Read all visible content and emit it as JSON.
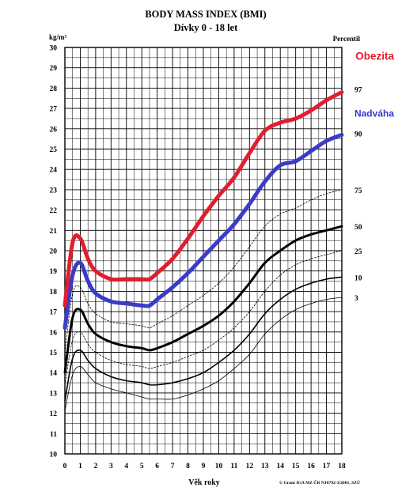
{
  "chart_data": {
    "type": "line",
    "title": "BODY MASS INDEX (BMI)",
    "subtitle": "Dívky 0 - 18 let",
    "ylabel": "kg/m²",
    "xlabel": "Věk roky",
    "percentile_header": "Percentil",
    "credit": "© Grant IGA MZ ČR NJ6792-3/2001, SZÚ",
    "xlim": [
      0,
      18
    ],
    "ylim": [
      10,
      30
    ],
    "x_ticks": [
      "0",
      "1",
      "2",
      "3",
      "4",
      "5",
      "6",
      "7",
      "8",
      "9",
      "10",
      "11",
      "12",
      "13",
      "14",
      "15",
      "16",
      "17",
      "18"
    ],
    "y_ticks": [
      "10",
      "11",
      "12",
      "13",
      "14",
      "15",
      "16",
      "17",
      "18",
      "19",
      "20",
      "21",
      "22",
      "23",
      "24",
      "25",
      "26",
      "27",
      "28",
      "29",
      "30"
    ],
    "grid": "on",
    "series": [
      {
        "name": "3",
        "x": [
          0,
          0.5,
          1,
          1.5,
          2,
          3,
          4,
          5,
          5.5,
          6,
          7,
          8,
          9,
          10,
          11,
          12,
          13,
          14,
          15,
          16,
          17,
          18
        ],
        "values": [
          12.1,
          13.9,
          14.3,
          13.9,
          13.5,
          13.2,
          13.0,
          12.8,
          12.7,
          12.7,
          12.7,
          12.9,
          13.2,
          13.6,
          14.2,
          14.9,
          15.9,
          16.6,
          17.1,
          17.4,
          17.6,
          17.7
        ]
      },
      {
        "name": "10",
        "x": [
          0,
          0.5,
          1,
          1.5,
          2,
          3,
          4,
          5,
          5.5,
          6,
          7,
          8,
          9,
          10,
          11,
          12,
          13,
          14,
          15,
          16,
          17,
          18
        ],
        "values": [
          12.6,
          14.7,
          15.1,
          14.6,
          14.2,
          13.8,
          13.6,
          13.5,
          13.4,
          13.4,
          13.5,
          13.7,
          14.0,
          14.5,
          15.1,
          15.9,
          16.9,
          17.6,
          18.1,
          18.4,
          18.6,
          18.7
        ]
      },
      {
        "name": "25",
        "x": [
          0,
          0.5,
          1,
          1.5,
          2,
          3,
          4,
          5,
          5.5,
          6,
          7,
          8,
          9,
          10,
          11,
          12,
          13,
          14,
          15,
          16,
          17,
          18
        ],
        "values": [
          13.4,
          15.6,
          16.0,
          15.4,
          15.0,
          14.6,
          14.4,
          14.3,
          14.2,
          14.3,
          14.5,
          14.8,
          15.1,
          15.6,
          16.2,
          17.0,
          18.0,
          18.8,
          19.3,
          19.6,
          19.8,
          20.0
        ]
      },
      {
        "name": "50",
        "x": [
          0,
          0.5,
          1,
          1.5,
          2,
          3,
          4,
          5,
          5.5,
          6,
          7,
          8,
          9,
          10,
          11,
          12,
          13,
          14,
          15,
          16,
          17,
          18
        ],
        "values": [
          14.0,
          16.7,
          17.1,
          16.4,
          15.9,
          15.5,
          15.3,
          15.2,
          15.1,
          15.2,
          15.5,
          15.9,
          16.3,
          16.8,
          17.5,
          18.4,
          19.4,
          20.0,
          20.5,
          20.8,
          21.0,
          21.2
        ]
      },
      {
        "name": "75",
        "x": [
          0,
          0.5,
          1,
          1.5,
          2,
          3,
          4,
          5,
          5.5,
          6,
          7,
          8,
          9,
          10,
          11,
          12,
          13,
          14,
          15,
          16,
          17,
          18
        ],
        "values": [
          15.0,
          17.9,
          18.2,
          17.4,
          16.9,
          16.5,
          16.4,
          16.3,
          16.2,
          16.4,
          16.8,
          17.3,
          17.8,
          18.4,
          19.2,
          20.2,
          21.2,
          21.8,
          22.1,
          22.5,
          22.8,
          23.0
        ]
      },
      {
        "name": "Nadváha",
        "x": [
          0,
          0.5,
          1,
          1.5,
          2,
          3,
          4,
          5,
          5.5,
          6,
          7,
          8,
          9,
          10,
          11,
          12,
          13,
          14,
          15,
          16,
          17,
          18
        ],
        "values": [
          16.2,
          18.8,
          19.4,
          18.5,
          17.9,
          17.5,
          17.4,
          17.3,
          17.3,
          17.6,
          18.2,
          18.9,
          19.7,
          20.5,
          21.3,
          22.3,
          23.4,
          24.2,
          24.4,
          24.9,
          25.4,
          25.7
        ],
        "label": "90",
        "color": "#3b3bc8"
      },
      {
        "name": "Obezita",
        "x": [
          0,
          0.5,
          1,
          1.5,
          2,
          3,
          4,
          5,
          5.5,
          6,
          7,
          8,
          9,
          10,
          11,
          12,
          13,
          14,
          15,
          16,
          17,
          18
        ],
        "values": [
          17.3,
          20.4,
          20.6,
          19.6,
          19.0,
          18.6,
          18.6,
          18.6,
          18.6,
          18.9,
          19.6,
          20.6,
          21.7,
          22.7,
          23.6,
          24.8,
          25.9,
          26.3,
          26.5,
          26.9,
          27.4,
          27.8
        ],
        "label": "97",
        "color": "#e01e2e"
      }
    ],
    "series_styles": {
      "3": {
        "color": "#000000",
        "width": 0.8,
        "dash": ""
      },
      "10": {
        "color": "#000000",
        "width": 1.6,
        "dash": ""
      },
      "25": {
        "color": "#000000",
        "width": 0.8,
        "dash": "2,2"
      },
      "50": {
        "color": "#000000",
        "width": 3,
        "dash": ""
      },
      "75": {
        "color": "#000000",
        "width": 0.8,
        "dash": "2,2"
      },
      "Nadváha": {
        "color": "#3b3bc8",
        "width": 5,
        "dash": ""
      },
      "Obezita": {
        "color": "#e01e2e",
        "width": 5,
        "dash": ""
      }
    },
    "right_labels": [
      {
        "text": "Obezita",
        "series": "Obezita",
        "color": "#e01e2e"
      },
      {
        "text": "97",
        "series": "Obezita",
        "color": "#000000"
      },
      {
        "text": "Nadváha",
        "series": "Nadváha",
        "color": "#3b3bc8"
      },
      {
        "text": "90",
        "series": "Nadváha",
        "color": "#000000"
      },
      {
        "text": "75",
        "series": "75",
        "color": "#000000"
      },
      {
        "text": "50",
        "series": "50",
        "color": "#000000"
      },
      {
        "text": "25",
        "series": "25",
        "color": "#000000"
      },
      {
        "text": "10",
        "series": "10",
        "color": "#000000"
      },
      {
        "text": "3",
        "series": "3",
        "color": "#000000"
      }
    ]
  }
}
